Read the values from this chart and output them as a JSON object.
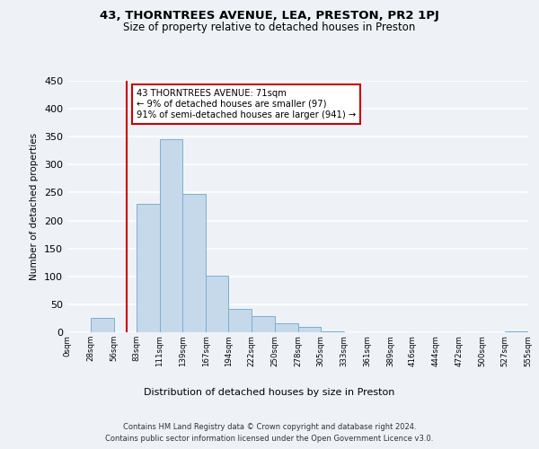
{
  "title": "43, THORNTREES AVENUE, LEA, PRESTON, PR2 1PJ",
  "subtitle": "Size of property relative to detached houses in Preston",
  "xlabel": "Distribution of detached houses by size in Preston",
  "ylabel": "Number of detached properties",
  "bar_color": "#c5d9ea",
  "bar_edge_color": "#7aafd4",
  "bin_edges": [
    0,
    28,
    56,
    83,
    111,
    139,
    167,
    194,
    222,
    250,
    278,
    305,
    333,
    361,
    389,
    416,
    444,
    472,
    500,
    527,
    555
  ],
  "bar_heights": [
    0,
    25,
    0,
    230,
    345,
    247,
    102,
    41,
    29,
    16,
    10,
    1,
    0,
    0,
    0,
    0,
    0,
    0,
    0,
    1
  ],
  "tick_labels": [
    "0sqm",
    "28sqm",
    "56sqm",
    "83sqm",
    "111sqm",
    "139sqm",
    "167sqm",
    "194sqm",
    "222sqm",
    "250sqm",
    "278sqm",
    "305sqm",
    "333sqm",
    "361sqm",
    "389sqm",
    "416sqm",
    "444sqm",
    "472sqm",
    "500sqm",
    "527sqm",
    "555sqm"
  ],
  "ylim": [
    0,
    450
  ],
  "yticks": [
    0,
    50,
    100,
    150,
    200,
    250,
    300,
    350,
    400,
    450
  ],
  "property_line_x": 71,
  "annotation_title": "43 THORNTREES AVENUE: 71sqm",
  "annotation_line1": "← 9% of detached houses are smaller (97)",
  "annotation_line2": "91% of semi-detached houses are larger (941) →",
  "annotation_box_color": "#ffffff",
  "annotation_box_edge_color": "#cc0000",
  "red_line_color": "#cc0000",
  "footer_line1": "Contains HM Land Registry data © Crown copyright and database right 2024.",
  "footer_line2": "Contains public sector information licensed under the Open Government Licence v3.0.",
  "background_color": "#eef2f7",
  "grid_color": "#ffffff"
}
